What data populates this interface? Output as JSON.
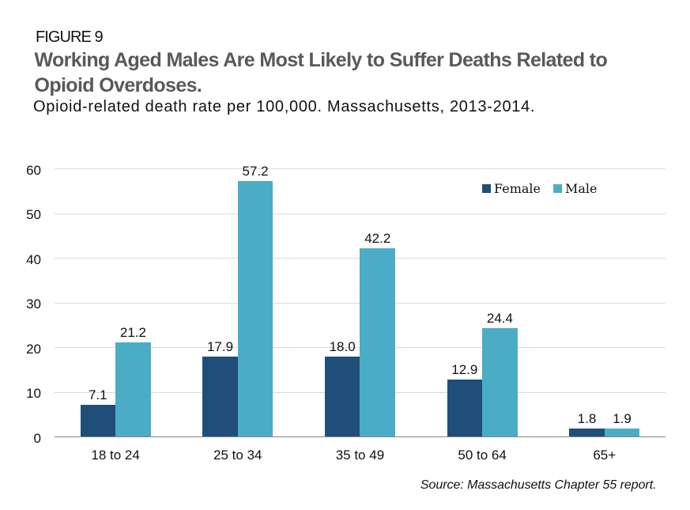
{
  "header": {
    "figure_label": "FIGURE 9",
    "title": "Working Aged Males Are Most Likely to Suffer Deaths Related to Opioid Overdoses.",
    "subtitle": "Opioid-related death rate per 100,000. Massachusetts, 2013-2014."
  },
  "chart_data": {
    "type": "bar",
    "title": "Working Aged Males Are Most Likely to Suffer Deaths Related to Opioid Overdoses.",
    "xlabel": "",
    "ylabel": "",
    "categories": [
      "18 to 24",
      "25 to 34",
      "35 to 49",
      "50 to 64",
      "65+"
    ],
    "series": [
      {
        "name": "Female",
        "color": "#1F4E79",
        "values": [
          7.1,
          17.9,
          18.0,
          12.9,
          1.8
        ],
        "labels": [
          "7.1",
          "17.9",
          "18.0",
          "12.9",
          "1.8"
        ]
      },
      {
        "name": "Male",
        "color": "#4BACC6",
        "values": [
          21.2,
          57.2,
          42.2,
          24.4,
          1.9
        ],
        "labels": [
          "21.2",
          "57.2",
          "42.2",
          "24.4",
          "1.9"
        ]
      }
    ],
    "ylim": [
      0,
      60
    ],
    "yticks": [
      0,
      10,
      20,
      30,
      40,
      50,
      60
    ],
    "grid": true,
    "value_labels": true,
    "legend_position": "top-right"
  },
  "legend": {
    "items": [
      {
        "label": "Female",
        "color": "#1F4E79"
      },
      {
        "label": "Male",
        "color": "#4BACC6"
      }
    ]
  },
  "footer": {
    "source": "Source: Massachusetts Chapter 55 report."
  },
  "colors": {
    "female_bar": "#1F4E79",
    "male_bar": "#4BACC6",
    "title_text": "#595959",
    "gridline": "#d9d9d9",
    "axis_line": "#868686"
  }
}
